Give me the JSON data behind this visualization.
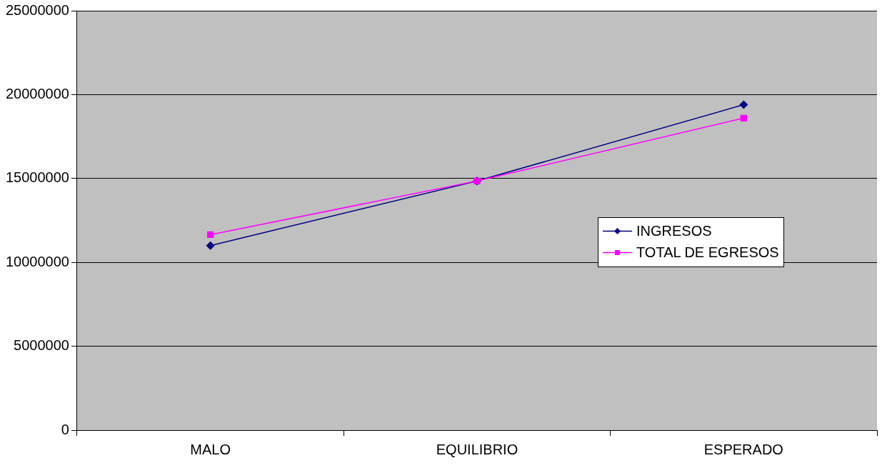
{
  "chart_data": {
    "type": "line",
    "categories": [
      "MALO",
      "EQUILIBRIO",
      "ESPERADO"
    ],
    "series": [
      {
        "name": "INGRESOS",
        "color": "#000080",
        "marker": "diamond",
        "values": [
          11000000,
          14850000,
          19400000
        ]
      },
      {
        "name": "TOTAL DE EGRESOS",
        "color": "#ff00ff",
        "marker": "square",
        "values": [
          11650000,
          14850000,
          18600000
        ]
      }
    ],
    "ylim": [
      0,
      25000000
    ],
    "yticks": [
      0,
      5000000,
      10000000,
      15000000,
      20000000,
      25000000
    ],
    "grid": "y",
    "legend": "right",
    "line_style": "solid"
  }
}
